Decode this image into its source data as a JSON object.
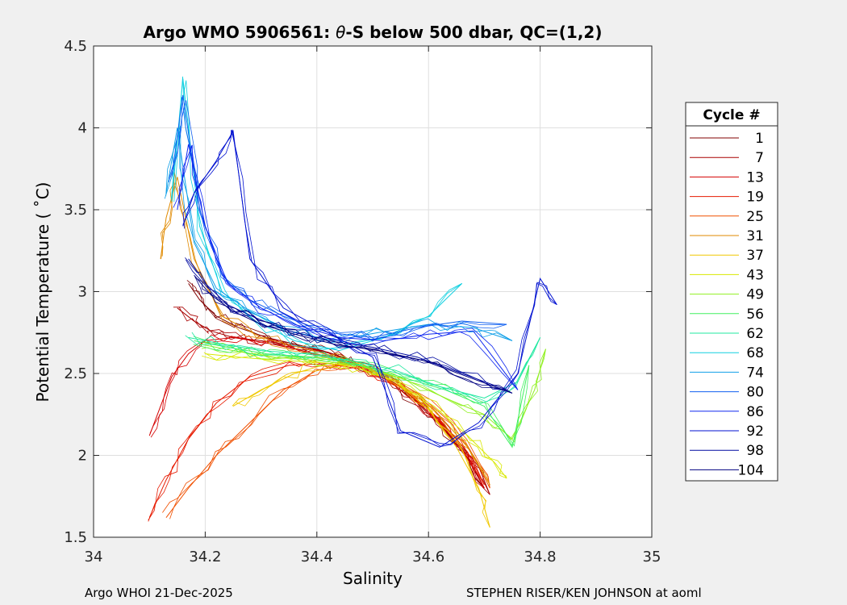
{
  "chart_data": {
    "type": "line",
    "title": "Argo WMO 5906561: θ-S below 500 dbar,  QC=(1,2)",
    "title_parts": {
      "prefix": "Argo WMO 5906561: ",
      "symbol": "θ",
      "suffix": "-S below 500 dbar,  QC=(1,2)"
    },
    "xlabel": "Salinity",
    "ylabel": "Potential Temperature ( ˚C)",
    "xlim": [
      34,
      35
    ],
    "ylim": [
      1.5,
      4.5
    ],
    "xticks": [
      34,
      34.2,
      34.4,
      34.6,
      34.8,
      35
    ],
    "xtick_labels": [
      "34",
      "34.2",
      "34.4",
      "34.6",
      "34.8",
      "35"
    ],
    "yticks": [
      1.5,
      2,
      2.5,
      3,
      3.5,
      4,
      4.5
    ],
    "ytick_labels": [
      "1.5",
      "2",
      "2.5",
      "3",
      "3.5",
      "4",
      "4.5"
    ],
    "grid": true,
    "legend": {
      "title": "Cycle #",
      "placement": "right",
      "entries": [
        {
          "label": "1",
          "color": "#800000"
        },
        {
          "label": "7",
          "color": "#a80000"
        },
        {
          "label": "13",
          "color": "#d40000"
        },
        {
          "label": "19",
          "color": "#e61a00"
        },
        {
          "label": "25",
          "color": "#f05000"
        },
        {
          "label": "31",
          "color": "#e08a00"
        },
        {
          "label": "37",
          "color": "#f0c800"
        },
        {
          "label": "43",
          "color": "#d8e800"
        },
        {
          "label": "49",
          "color": "#90f020"
        },
        {
          "label": "56",
          "color": "#40f060"
        },
        {
          "label": "62",
          "color": "#20e8a0"
        },
        {
          "label": "68",
          "color": "#10d0e0"
        },
        {
          "label": "74",
          "color": "#10a0e8"
        },
        {
          "label": "80",
          "color": "#1060f0"
        },
        {
          "label": "86",
          "color": "#1028f0"
        },
        {
          "label": "92",
          "color": "#0010d0"
        },
        {
          "label": "98",
          "color": "#000aa0"
        },
        {
          "label": "104",
          "color": "#000080"
        }
      ]
    },
    "series": [
      {
        "name": "1",
        "color": "#800000",
        "x": [
          34.17,
          34.19,
          34.22,
          34.26,
          34.31,
          34.36,
          34.41,
          34.46,
          34.52,
          34.58,
          34.63,
          34.67,
          34.7
        ],
        "y": [
          3.05,
          2.95,
          2.85,
          2.78,
          2.72,
          2.68,
          2.64,
          2.58,
          2.48,
          2.32,
          2.15,
          1.98,
          1.8
        ]
      },
      {
        "name": "7",
        "color": "#a80000",
        "x": [
          34.15,
          34.18,
          34.21,
          34.25,
          34.3,
          34.36,
          34.42,
          34.48,
          34.54,
          34.6,
          34.65,
          34.69,
          34.71
        ],
        "y": [
          2.9,
          2.82,
          2.76,
          2.72,
          2.7,
          2.67,
          2.63,
          2.56,
          2.44,
          2.28,
          2.1,
          1.93,
          1.76
        ]
      },
      {
        "name": "13",
        "color": "#d40000",
        "x": [
          34.1,
          34.12,
          34.14,
          34.17,
          34.2,
          34.25,
          34.32,
          34.4,
          34.47,
          34.55,
          34.62,
          34.67,
          34.7
        ],
        "y": [
          2.12,
          2.3,
          2.48,
          2.62,
          2.7,
          2.72,
          2.68,
          2.62,
          2.55,
          2.42,
          2.2,
          2.0,
          1.8
        ]
      },
      {
        "name": "19",
        "color": "#e61a00",
        "x": [
          34.1,
          34.13,
          34.17,
          34.22,
          34.28,
          34.35,
          34.42,
          34.49,
          34.56,
          34.62,
          34.67,
          34.7
        ],
        "y": [
          1.62,
          1.85,
          2.1,
          2.32,
          2.48,
          2.55,
          2.56,
          2.52,
          2.4,
          2.22,
          2.02,
          1.82
        ]
      },
      {
        "name": "25",
        "color": "#f05000",
        "x": [
          34.13,
          34.17,
          34.22,
          34.28,
          34.34,
          34.4,
          34.46,
          34.52,
          34.58,
          34.64,
          34.68,
          34.71
        ],
        "y": [
          1.62,
          1.8,
          2.0,
          2.2,
          2.4,
          2.52,
          2.56,
          2.5,
          2.38,
          2.2,
          2.0,
          1.8
        ]
      },
      {
        "name": "31",
        "color": "#e08a00",
        "x": [
          34.12,
          34.13,
          34.15,
          34.18,
          34.23,
          34.3,
          34.38,
          34.46,
          34.54,
          34.61,
          34.67,
          34.71
        ],
        "y": [
          3.2,
          3.45,
          3.7,
          3.2,
          2.85,
          2.72,
          2.65,
          2.58,
          2.45,
          2.28,
          2.05,
          1.82
        ]
      },
      {
        "name": "37",
        "color": "#f0c800",
        "x": [
          34.25,
          34.3,
          34.36,
          34.42,
          34.48,
          34.54,
          34.6,
          34.65,
          34.69,
          34.71
        ],
        "y": [
          2.3,
          2.4,
          2.5,
          2.56,
          2.55,
          2.45,
          2.28,
          2.05,
          1.8,
          1.56
        ]
      },
      {
        "name": "43",
        "color": "#d8e800",
        "x": [
          34.2,
          34.26,
          34.33,
          34.4,
          34.47,
          34.54,
          34.61,
          34.67,
          34.72,
          34.74
        ],
        "y": [
          2.62,
          2.6,
          2.58,
          2.57,
          2.54,
          2.45,
          2.3,
          2.12,
          1.95,
          1.86
        ]
      },
      {
        "name": "49",
        "color": "#90f020",
        "x": [
          34.19,
          34.25,
          34.32,
          34.4,
          34.48,
          34.56,
          34.63,
          34.7,
          34.75,
          34.79,
          34.81
        ],
        "y": [
          2.68,
          2.64,
          2.6,
          2.58,
          2.55,
          2.46,
          2.35,
          2.25,
          2.1,
          2.4,
          2.65
        ]
      },
      {
        "name": "56",
        "color": "#40f060",
        "x": [
          34.18,
          34.24,
          34.31,
          34.39,
          34.47,
          34.55,
          34.63,
          34.7,
          34.75,
          34.78
        ],
        "y": [
          2.7,
          2.66,
          2.62,
          2.6,
          2.56,
          2.48,
          2.4,
          2.3,
          2.05,
          2.55
        ]
      },
      {
        "name": "62",
        "color": "#20e8a0",
        "x": [
          34.17,
          34.23,
          34.3,
          34.38,
          34.46,
          34.54,
          34.62,
          34.7,
          34.76,
          34.8
        ],
        "y": [
          2.72,
          2.68,
          2.64,
          2.62,
          2.58,
          2.52,
          2.42,
          2.35,
          2.45,
          2.72
        ]
      },
      {
        "name": "68",
        "color": "#10d0e0",
        "x": [
          34.14,
          34.16,
          34.19,
          34.23,
          34.29,
          34.36,
          34.44,
          34.52,
          34.6,
          34.66
        ],
        "y": [
          3.55,
          4.3,
          3.4,
          3.0,
          2.82,
          2.7,
          2.64,
          2.72,
          2.85,
          3.05
        ]
      },
      {
        "name": "74",
        "color": "#10a0e8",
        "x": [
          34.13,
          34.15,
          34.18,
          34.22,
          34.28,
          34.35,
          34.43,
          34.51,
          34.6,
          34.68,
          34.75
        ],
        "y": [
          3.6,
          4.0,
          3.3,
          3.02,
          2.88,
          2.76,
          2.7,
          2.75,
          2.8,
          2.78,
          2.7
        ]
      },
      {
        "name": "80",
        "color": "#1060f0",
        "x": [
          34.14,
          34.16,
          34.19,
          34.23,
          34.28,
          34.34,
          34.42,
          34.5,
          34.58,
          34.66,
          34.74
        ],
        "y": [
          3.7,
          4.2,
          3.5,
          3.1,
          2.95,
          2.85,
          2.75,
          2.72,
          2.78,
          2.82,
          2.8
        ]
      },
      {
        "name": "86",
        "color": "#1028f0",
        "x": [
          34.15,
          34.17,
          34.2,
          34.24,
          34.3,
          34.36,
          34.44,
          34.52,
          34.6,
          34.68,
          34.76
        ],
        "y": [
          3.5,
          3.9,
          3.4,
          3.05,
          2.9,
          2.8,
          2.72,
          2.7,
          2.74,
          2.76,
          2.4
        ]
      },
      {
        "name": "92",
        "color": "#0010d0",
        "x": [
          34.16,
          34.18,
          34.22,
          34.25,
          34.28,
          34.34,
          34.42,
          34.5,
          34.55,
          34.62,
          34.69,
          34.76,
          34.8,
          34.83
        ],
        "y": [
          3.4,
          3.6,
          3.8,
          3.98,
          3.2,
          2.9,
          2.75,
          2.6,
          2.15,
          2.05,
          2.2,
          2.5,
          3.08,
          2.92
        ]
      },
      {
        "name": "98",
        "color": "#000aa0",
        "x": [
          34.17,
          34.2,
          34.24,
          34.29,
          34.35,
          34.42,
          34.5,
          34.58,
          34.66,
          34.74
        ],
        "y": [
          3.2,
          3.05,
          2.92,
          2.84,
          2.76,
          2.7,
          2.66,
          2.6,
          2.5,
          2.4
        ]
      },
      {
        "name": "104",
        "color": "#000080",
        "x": [
          34.18,
          34.21,
          34.25,
          34.3,
          34.36,
          34.43,
          34.51,
          34.59,
          34.67,
          34.75
        ],
        "y": [
          3.1,
          2.98,
          2.88,
          2.8,
          2.74,
          2.68,
          2.64,
          2.58,
          2.48,
          2.38
        ]
      }
    ]
  },
  "footer": {
    "left": "Argo WHOI 21-Dec-2025",
    "right": "STEPHEN RISER/KEN JOHNSON at aoml"
  }
}
